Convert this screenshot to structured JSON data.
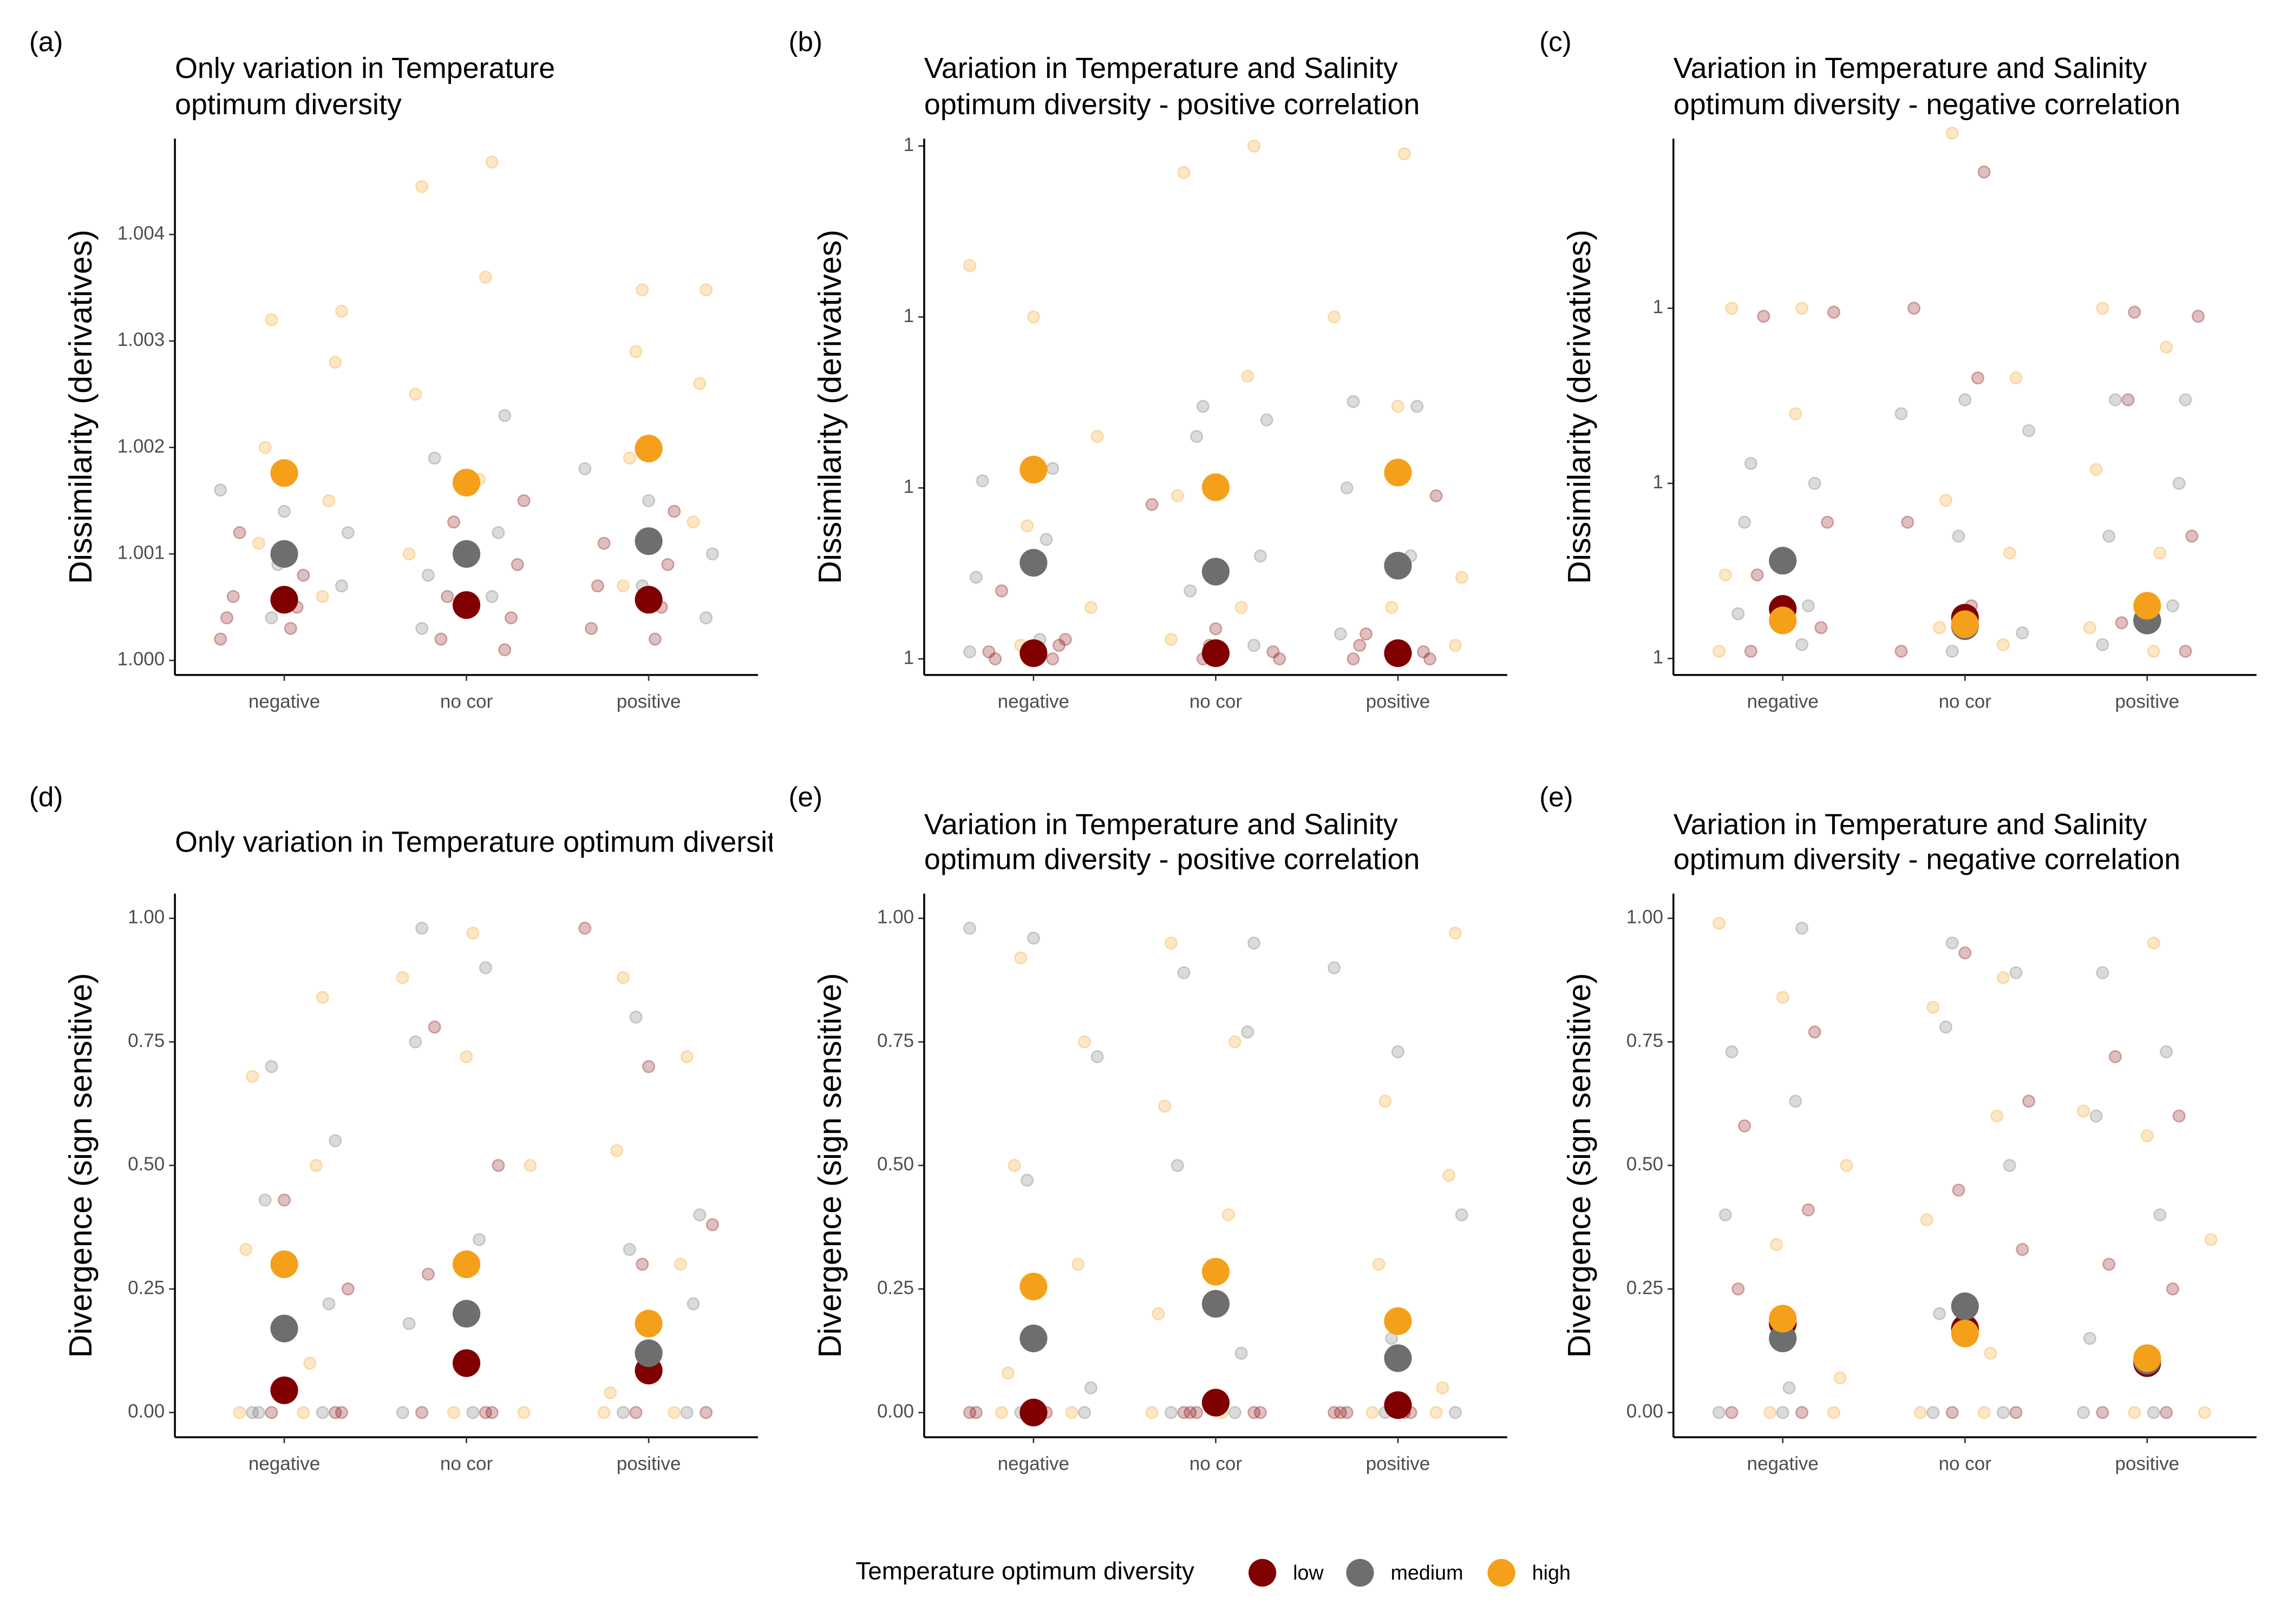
{
  "legend_title": "Temperature optimum diversity",
  "chart_data": [
    {
      "type": "strip",
      "tag": "(a)",
      "title": [
        "Only variation in Temperature",
        " optimum diversity"
      ],
      "ylabel": "Dissimilarity (derivatives)",
      "categories": [
        "negative",
        "no cor",
        "positive"
      ],
      "log_scale": false,
      "ylim": [
        0.999863,
        1.0049
      ],
      "yticks": [
        {
          "value": 1,
          "label": "1.000"
        },
        {
          "value": 1.001,
          "label": "1.001"
        },
        {
          "value": 1.002,
          "label": "1.002"
        },
        {
          "value": 1.003,
          "label": "1.003"
        },
        {
          "value": 1.004,
          "label": "1.004"
        }
      ],
      "series": [
        {
          "name": "low",
          "color": "#800000",
          "values": [
            1.00057,
            1.00052,
            1.00057
          ],
          "points": [
            [
              1.0002,
              1.0003,
              1.0004,
              1.0005,
              1.0006,
              1.0008,
              1.0012
            ],
            [
              1.0001,
              1.0002,
              1.0004,
              1.0006,
              1.0009,
              1.0013,
              1.0015
            ],
            [
              1.0002,
              1.0003,
              1.0005,
              1.0007,
              1.0009,
              1.0011,
              1.0014
            ]
          ]
        },
        {
          "name": "medium",
          "color": "#6e6e6e",
          "values": [
            1.001,
            1.001,
            1.00112
          ],
          "points": [
            [
              1.0004,
              1.0007,
              1.0009,
              1.0012,
              1.0014,
              1.0016
            ],
            [
              1.0003,
              1.0006,
              1.0008,
              1.0012,
              1.0019,
              1.0023
            ],
            [
              1.0004,
              1.0007,
              1.001,
              1.0015,
              1.0018,
              1.002
            ]
          ]
        },
        {
          "name": "high",
          "color": "#f5a01a",
          "values": [
            1.00176,
            1.00167,
            1.00199
          ],
          "points": [
            [
              1.0006,
              1.0011,
              1.0015,
              1.002,
              1.0028,
              1.0032,
              1.00328
            ],
            [
              1.0005,
              1.001,
              1.0017,
              1.0025,
              1.0036,
              1.00445,
              1.00468
            ],
            [
              1.0007,
              1.0013,
              1.0019,
              1.0026,
              1.0029,
              1.00348,
              1.00348
            ]
          ]
        }
      ]
    },
    {
      "type": "strip",
      "tag": "(b)",
      "title": [
        "Variation in Temperature and Salinity",
        "optimum diversity - positive correlation"
      ],
      "ylabel": "Dissimilarity (derivatives)",
      "categories": [
        "negative",
        "no cor",
        "positive"
      ],
      "log_scale": true,
      "ylim": [
        1.0000805,
        1.1104
      ],
      "yticks": [
        {
          "value": 1.0001,
          "label": "1"
        },
        {
          "value": 1.001,
          "label": "1"
        },
        {
          "value": 1.01,
          "label": "1"
        },
        {
          "value": 1.1,
          "label": "1"
        }
      ],
      "series": [
        {
          "name": "low",
          "color": "#800000",
          "values": [
            1.000108,
            1.000108,
            1.000108
          ],
          "points": [
            [
              1.0001,
              1.00011,
              1.00012,
              1.0001,
              1.00013,
              1.00025
            ],
            [
              1.0001,
              1.00011,
              1.00012,
              1.0001,
              1.00015,
              1.0008
            ],
            [
              1.0001,
              1.00011,
              1.00012,
              1.0001,
              1.00014,
              1.0009
            ]
          ]
        },
        {
          "name": "medium",
          "color": "#6e6e6e",
          "values": [
            1.000365,
            1.000324,
            1.000351
          ],
          "points": [
            [
              1.00011,
              1.00013,
              1.0003,
              1.0005,
              1.0011,
              1.0013
            ],
            [
              1.00012,
              1.00025,
              1.0004,
              1.002,
              1.0025,
              1.003
            ],
            [
              1.00011,
              1.00014,
              1.0004,
              1.001,
              1.003,
              1.0032
            ]
          ]
        },
        {
          "name": "high",
          "color": "#f5a01a",
          "values": [
            1.00128,
            1.00101,
            1.00123
          ],
          "points": [
            [
              1.00012,
              1.0002,
              1.0006,
              1.002,
              1.01,
              1.02
            ],
            [
              1.00013,
              1.0002,
              1.0009,
              1.0045,
              1.07,
              1.1
            ],
            [
              1.00012,
              1.0002,
              1.0003,
              1.003,
              1.01,
              1.09
            ]
          ]
        }
      ]
    },
    {
      "type": "strip",
      "tag": "(c)",
      "title": [
        "Variation in Temperature and Salinity",
        "optimum diversity - negative correlation"
      ],
      "ylabel": "Dissimilarity (derivatives)",
      "categories": [
        "negative",
        "no cor",
        "positive"
      ],
      "log_scale": true,
      "ylim": [
        1.0000805,
        1.093
      ],
      "yticks": [
        {
          "value": 1.0001,
          "label": "1"
        },
        {
          "value": 1.001,
          "label": "1"
        },
        {
          "value": 1.01,
          "label": "1"
        }
      ],
      "series": [
        {
          "name": "low",
          "color": "#800000",
          "values": [
            1.000192,
            1.000171,
            1.000165
          ],
          "points": [
            [
              1.00011,
              1.00015,
              1.0003,
              1.0006,
              1.009,
              1.0095
            ],
            [
              1.00011,
              1.0002,
              1.0006,
              1.004,
              1.01,
              1.06
            ],
            [
              1.00011,
              1.00016,
              1.0005,
              1.003,
              1.009,
              1.0095
            ]
          ]
        },
        {
          "name": "medium",
          "color": "#6e6e6e",
          "values": [
            1.000362,
            1.000153,
            1.000165
          ],
          "points": [
            [
              1.00012,
              1.00018,
              1.0002,
              1.0006,
              1.001,
              1.0013
            ],
            [
              1.00011,
              1.00014,
              1.0005,
              1.002,
              1.003,
              1.0025
            ],
            [
              1.00012,
              1.0002,
              1.0005,
              1.001,
              1.003,
              1.003
            ]
          ]
        },
        {
          "name": "high",
          "color": "#f5a01a",
          "values": [
            1.000165,
            1.000157,
            1.0002
          ],
          "points": [
            [
              1.00011,
              1.00016,
              1.0003,
              1.0025,
              1.01,
              1.01
            ],
            [
              1.00012,
              1.00015,
              1.0004,
              1.0008,
              1.004,
              1.1
            ],
            [
              1.00011,
              1.00015,
              1.0004,
              1.0012,
              1.006,
              1.01
            ]
          ]
        }
      ]
    },
    {
      "type": "strip",
      "tag": "(d)",
      "title": [
        "Only variation in Temperature optimum diversity"
      ],
      "ylabel": "Divergence (sign sensitive)",
      "categories": [
        "negative",
        "no cor",
        "positive"
      ],
      "log_scale": false,
      "ylim": [
        -0.05,
        1.05
      ],
      "yticks": [
        {
          "value": 0,
          "label": "0.00"
        },
        {
          "value": 0.25,
          "label": "0.25"
        },
        {
          "value": 0.5,
          "label": "0.50"
        },
        {
          "value": 0.75,
          "label": "0.75"
        },
        {
          "value": 1,
          "label": "1.00"
        }
      ],
      "series": [
        {
          "name": "low",
          "color": "#800000",
          "values": [
            0.045,
            0.1,
            0.085
          ],
          "points": [
            [
              0,
              0,
              0,
              0.05,
              0.25,
              0.43
            ],
            [
              0,
              0,
              0,
              0.28,
              0.5,
              0.78
            ],
            [
              0,
              0,
              0.3,
              0.38,
              0.7,
              0.98
            ]
          ]
        },
        {
          "name": "medium",
          "color": "#6e6e6e",
          "values": [
            0.17,
            0.2,
            0.12
          ],
          "points": [
            [
              0,
              0,
              0,
              0.22,
              0.43,
              0.55,
              0.7
            ],
            [
              0,
              0,
              0.18,
              0.35,
              0.75,
              0.9,
              0.98
            ],
            [
              0,
              0,
              0.22,
              0.33,
              0.4,
              0.8
            ]
          ]
        },
        {
          "name": "high",
          "color": "#f5a01a",
          "values": [
            0.3,
            0.3,
            0.18
          ],
          "points": [
            [
              0,
              0,
              0.1,
              0.33,
              0.5,
              0.68,
              0.84
            ],
            [
              0,
              0,
              0.3,
              0.5,
              0.72,
              0.88,
              0.97
            ],
            [
              0,
              0,
              0.04,
              0.3,
              0.53,
              0.72,
              0.88
            ]
          ]
        }
      ]
    },
    {
      "type": "strip",
      "tag": "(e)",
      "title": [
        "Variation in Temperature and Salinity",
        "optimum diversity - positive correlation"
      ],
      "ylabel": "Divergence (sign sensitive)",
      "categories": [
        "negative",
        "no cor",
        "positive"
      ],
      "log_scale": false,
      "ylim": [
        -0.05,
        1.05
      ],
      "yticks": [
        {
          "value": 0,
          "label": "0.00"
        },
        {
          "value": 0.25,
          "label": "0.25"
        },
        {
          "value": 0.5,
          "label": "0.50"
        },
        {
          "value": 0.75,
          "label": "0.75"
        },
        {
          "value": 1,
          "label": "1.00"
        }
      ],
      "series": [
        {
          "name": "low",
          "color": "#800000",
          "values": [
            0,
            0.02,
            0.015
          ],
          "points": [
            [
              0,
              0,
              0,
              0,
              0
            ],
            [
              0,
              0,
              0,
              0,
              0
            ],
            [
              0,
              0,
              0,
              0,
              0
            ]
          ]
        },
        {
          "name": "medium",
          "color": "#6e6e6e",
          "values": [
            0.15,
            0.22,
            0.11
          ],
          "points": [
            [
              0,
              0,
              0.05,
              0.47,
              0.72,
              0.96,
              0.98
            ],
            [
              0,
              0,
              0.12,
              0.5,
              0.77,
              0.89,
              0.95
            ],
            [
              0,
              0,
              0.15,
              0.4,
              0.73,
              0.9
            ]
          ]
        },
        {
          "name": "high",
          "color": "#f5a01a",
          "values": [
            0.255,
            0.285,
            0.185
          ],
          "points": [
            [
              0,
              0,
              0.08,
              0.3,
              0.5,
              0.75,
              0.92
            ],
            [
              0,
              0,
              0.2,
              0.4,
              0.62,
              0.75,
              0.95
            ],
            [
              0,
              0,
              0.05,
              0.3,
              0.48,
              0.63,
              0.97
            ]
          ]
        }
      ]
    },
    {
      "type": "strip",
      "tag": "(e)",
      "title": [
        "Variation in Temperature and Salinity",
        "optimum diversity - negative correlation"
      ],
      "ylabel": "Divergence (sign sensitive)",
      "categories": [
        "negative",
        "no cor",
        "positive"
      ],
      "log_scale": false,
      "ylim": [
        -0.05,
        1.05
      ],
      "yticks": [
        {
          "value": 0,
          "label": "0.00"
        },
        {
          "value": 0.25,
          "label": "0.25"
        },
        {
          "value": 0.5,
          "label": "0.50"
        },
        {
          "value": 0.75,
          "label": "0.75"
        },
        {
          "value": 1,
          "label": "1.00"
        }
      ],
      "series": [
        {
          "name": "low",
          "color": "#800000",
          "values": [
            0.18,
            0.17,
            0.1
          ],
          "points": [
            [
              0,
              0,
              0.25,
              0.41,
              0.58,
              0.77
            ],
            [
              0,
              0,
              0.33,
              0.45,
              0.63,
              0.93
            ],
            [
              0,
              0,
              0.25,
              0.3,
              0.6,
              0.72
            ]
          ]
        },
        {
          "name": "medium",
          "color": "#6e6e6e",
          "values": [
            0.15,
            0.215,
            0.105
          ],
          "points": [
            [
              0,
              0,
              0.05,
              0.4,
              0.63,
              0.73,
              0.98
            ],
            [
              0,
              0,
              0.2,
              0.5,
              0.78,
              0.89,
              0.95
            ],
            [
              0,
              0,
              0.15,
              0.4,
              0.6,
              0.73,
              0.89
            ]
          ]
        },
        {
          "name": "high",
          "color": "#f5a01a",
          "values": [
            0.19,
            0.16,
            0.11
          ],
          "points": [
            [
              0,
              0,
              0.07,
              0.34,
              0.5,
              0.84,
              0.99
            ],
            [
              0,
              0,
              0.12,
              0.39,
              0.6,
              0.82,
              0.88
            ],
            [
              0,
              0,
              0.1,
              0.35,
              0.56,
              0.61,
              0.95
            ]
          ]
        }
      ]
    }
  ]
}
